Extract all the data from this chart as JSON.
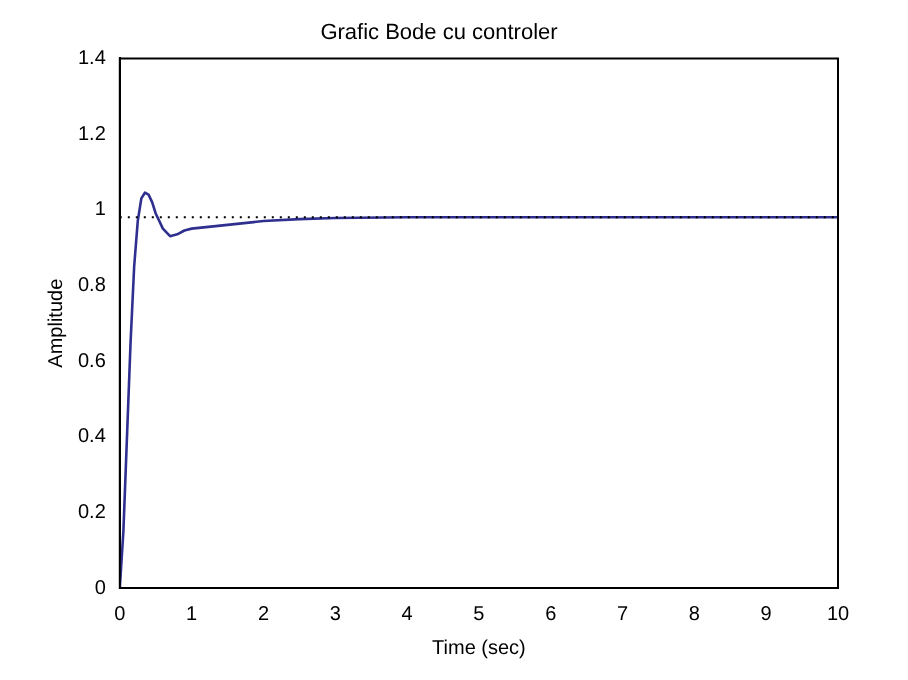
{
  "chart_data": {
    "type": "line",
    "title": "Grafic Bode cu controler",
    "xlabel": "Time (sec)",
    "ylabel": "Amplitude",
    "x": [
      0,
      0.05,
      0.1,
      0.15,
      0.2,
      0.25,
      0.3,
      0.35,
      0.4,
      0.45,
      0.5,
      0.6,
      0.7,
      0.8,
      0.9,
      1,
      1.5,
      2,
      2.5,
      3,
      4,
      5,
      6,
      7,
      8,
      9,
      10
    ],
    "series": [
      {
        "color": "#2f2f8f",
        "values": [
          0,
          0.15,
          0.4,
          0.65,
          0.85,
          0.97,
          1.03,
          1.045,
          1.04,
          1.02,
          0.99,
          0.95,
          0.93,
          0.935,
          0.945,
          0.95,
          0.96,
          0.97,
          0.975,
          0.978,
          0.98,
          0.98,
          0.98,
          0.98,
          0.98,
          0.98,
          0.98
        ]
      }
    ],
    "xlim": [
      0,
      10
    ],
    "xticks": [
      0,
      1,
      2,
      3,
      4,
      5,
      6,
      7,
      8,
      9,
      10
    ],
    "ylim": [
      0,
      1.4
    ],
    "yticks": [
      0,
      0.2,
      0.4,
      0.6,
      0.8,
      1,
      1.2,
      1.4
    ],
    "ref_lines": [
      {
        "axis": "y",
        "value": 0.98,
        "color": "#000000",
        "line_style": "dotted"
      }
    ],
    "grid": false,
    "legend": false,
    "marker": "none",
    "line_style": "solid"
  }
}
